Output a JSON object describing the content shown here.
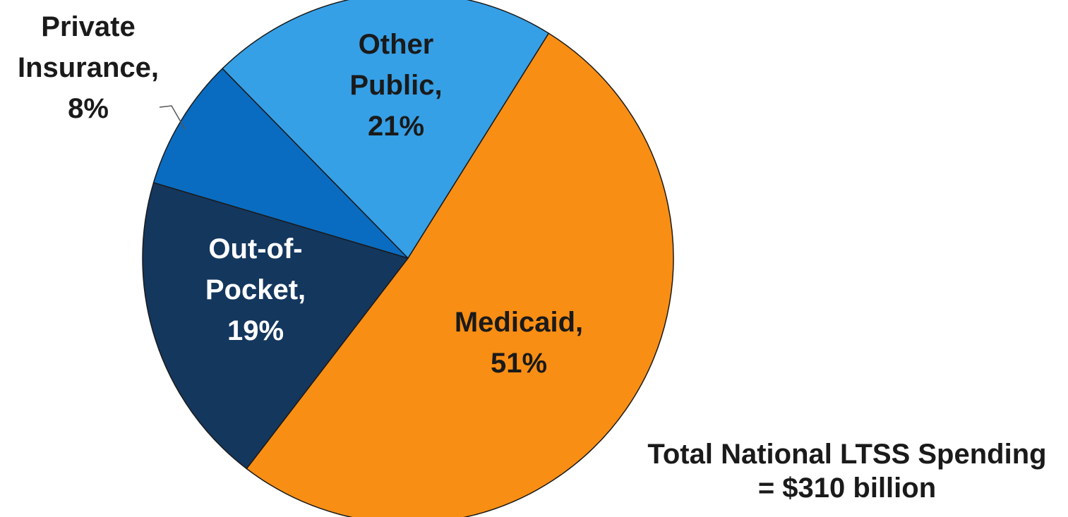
{
  "chart_data": {
    "type": "pie",
    "slices": [
      {
        "name": "Medicaid",
        "value": 51,
        "label_lines": [
          "Medicaid,",
          "51%"
        ],
        "color": "#F98E14",
        "text_color": "#1a1a1a"
      },
      {
        "name": "Out-of-Pocket",
        "value": 19,
        "label_lines": [
          "Out-of-",
          "Pocket,",
          "19%"
        ],
        "color": "#14375E",
        "text_color": "#ffffff"
      },
      {
        "name": "Private Insurance",
        "value": 8,
        "label_lines": [
          "Private",
          "Insurance,",
          "8%"
        ],
        "color": "#0A6CC0",
        "text_color": "#1a1a1a"
      },
      {
        "name": "Other Public",
        "value": 21,
        "label_lines": [
          "Other",
          "Public,",
          "21%"
        ],
        "color": "#36A0E6",
        "text_color": "#1a1a1a"
      }
    ],
    "note_lines": [
      "Total National LTSS Spending",
      "= $310 billion"
    ]
  }
}
